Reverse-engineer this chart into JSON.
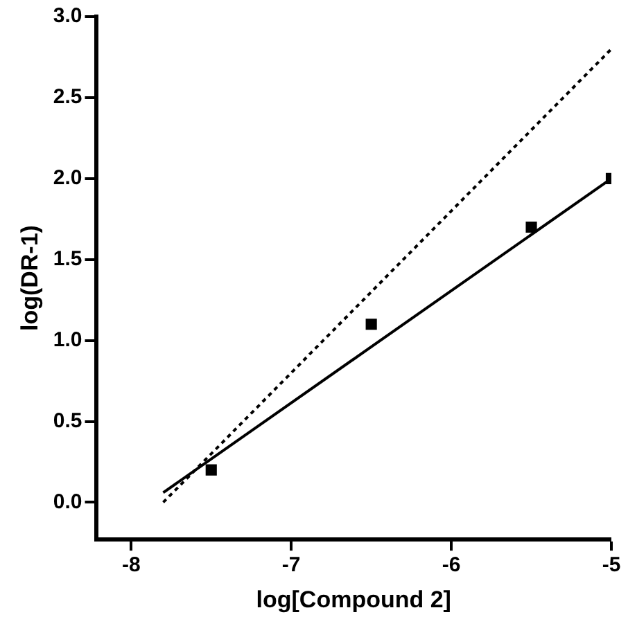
{
  "chart_data": {
    "type": "scatter",
    "xlabel": "log[Compound 2]",
    "ylabel": "log(DR-1)",
    "xlim": [
      -8.22,
      -5
    ],
    "xticks": [
      -8,
      -7,
      -6,
      -5
    ],
    "ylim": [
      -0.23,
      3.0
    ],
    "yticks": [
      {
        "value": 0,
        "label": "0.0"
      },
      0.5,
      {
        "value": 1,
        "label": "1.0"
      },
      1.5,
      {
        "value": 2,
        "label": "2.0"
      },
      2.5,
      {
        "value": 3,
        "label": "3.0"
      }
    ],
    "grid": false,
    "legend": false,
    "series": [
      {
        "type": "scatter",
        "color": "#000000",
        "marker": "square",
        "x": [
          -7.5,
          -6.5,
          -5.5,
          -5.0
        ],
        "values": [
          0.2,
          1.1,
          1.7,
          2.0
        ]
      },
      {
        "type": "line",
        "color": "#000000",
        "marker": "none",
        "line_style": "solid",
        "x": [
          -7.8,
          -5.0
        ],
        "values": [
          0.06,
          2.0
        ]
      },
      {
        "type": "line",
        "color": "#000000",
        "marker": "none",
        "line_style": "dotted",
        "x": [
          -7.8,
          -5.0
        ],
        "values": [
          0.0,
          2.8
        ]
      }
    ]
  }
}
